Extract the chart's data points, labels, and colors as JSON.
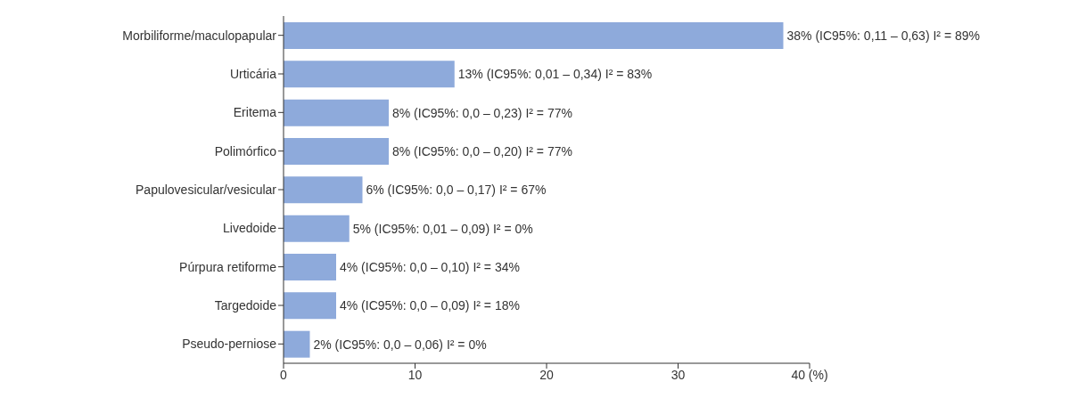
{
  "chart_data": {
    "type": "bar",
    "orientation": "horizontal",
    "categories": [
      "Morbiliforme/maculopapular",
      "Urticária",
      "Eritema",
      "Polimórfico",
      "Papulovesicular/vesicular",
      "Livedoide",
      "Púrpura retiforme",
      "Targedoide",
      "Pseudo-perniose"
    ],
    "values": [
      38,
      13,
      8,
      8,
      6,
      5,
      4,
      4,
      2
    ],
    "color": "#8eaadb",
    "value_labels": [
      "38% (IC95%: 0,11 – 0,63) I² = 89%",
      "13% (IC95%: 0,01 – 0,34) I² = 83%",
      "8% (IC95%: 0,0 – 0,23) I² = 77%",
      "8% (IC95%: 0,0 – 0,20) I² = 77%",
      "6% (IC95%: 0,0 – 0,17) I² = 67%",
      "5% (IC95%: 0,01 – 0,09) I² = 0%",
      "4% (IC95%: 0,0 – 0,10) I² = 34%",
      "4% (IC95%: 0,0 – 0,09) I² = 18%",
      "2% (IC95%: 0,0 – 0,06) I² = 0%"
    ],
    "xlim": [
      0,
      40
    ],
    "xticks": [
      0,
      10,
      20,
      30,
      {
        "value": 40,
        "label": "40 (%)"
      }
    ]
  }
}
